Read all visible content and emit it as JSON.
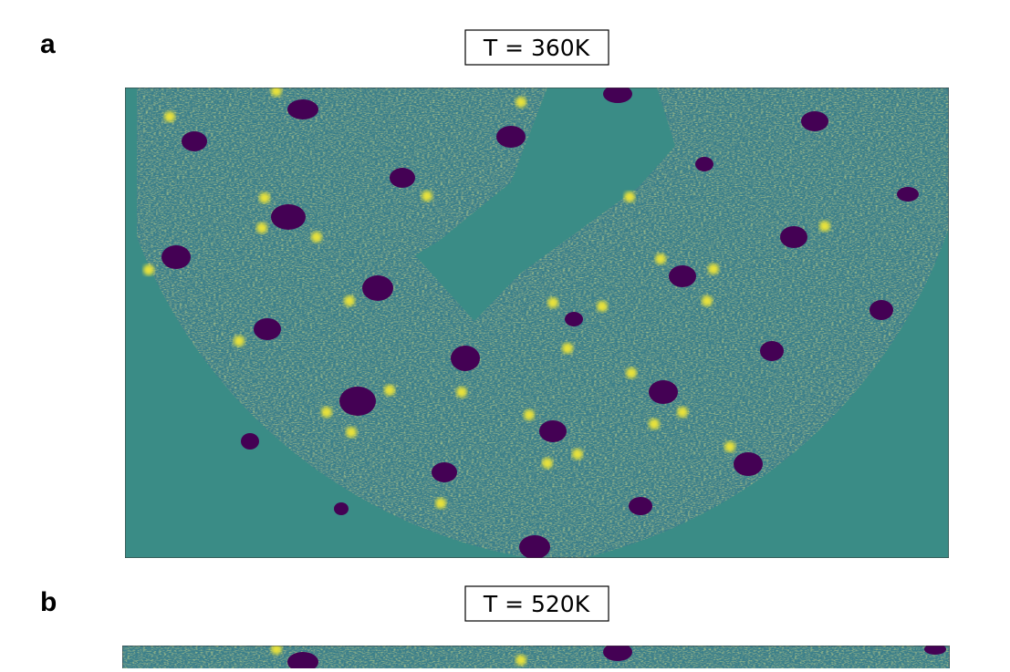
{
  "panels": [
    {
      "label": "a",
      "title": "T = 360K"
    },
    {
      "label": "b",
      "title": "T = 520K"
    }
  ]
}
